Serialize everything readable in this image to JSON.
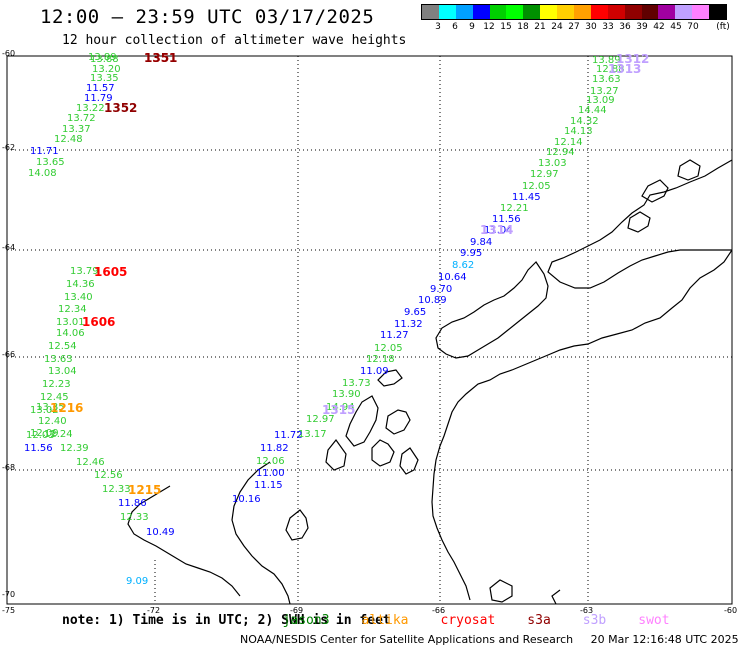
{
  "header": {
    "title": "12:00 – 23:59 UTC 03/17/2025",
    "subtitle": "12 hour collection of altimeter wave heights"
  },
  "legend": {
    "unit": "(ft)",
    "colors": [
      "#808080",
      "#00ffff",
      "#00a0ff",
      "#0000ff",
      "#00d000",
      "#00ff00",
      "#009000",
      "#ffff00",
      "#ffd000",
      "#ffa000",
      "#ff0000",
      "#d00000",
      "#900000",
      "#600000",
      "#a000a0",
      "#c0a0ff",
      "#ff80ff",
      "#000000"
    ],
    "labels": [
      "3",
      "6",
      "9",
      "12",
      "15",
      "18",
      "21",
      "24",
      "27",
      "30",
      "33",
      "36",
      "39",
      "42",
      "45",
      "70"
    ]
  },
  "axes": {
    "lat_labels": [
      "-60",
      "-62",
      "-64",
      "-66",
      "-68",
      "-70"
    ],
    "lon_labels": [
      "-75",
      "-72",
      "-69",
      "-66",
      "-63",
      "-60"
    ]
  },
  "passes": [
    {
      "id": "1351",
      "color": "#ff0000"
    },
    {
      "id": "1351",
      "color": "#900000"
    },
    {
      "id": "1352",
      "color": "#900000"
    },
    {
      "id": "1605",
      "color": "#ff0000"
    },
    {
      "id": "1606",
      "color": "#ff0000"
    },
    {
      "id": "1216",
      "color": "#ff9900"
    },
    {
      "id": "1215",
      "color": "#ff9900"
    },
    {
      "id": "1312",
      "color": "#c0a0ff"
    },
    {
      "id": "1313",
      "color": "#c0a0ff"
    },
    {
      "id": "1314",
      "color": "#c0a0ff"
    },
    {
      "id": "1315",
      "color": "#c0a0ff"
    }
  ],
  "swh_values": [
    {
      "v": "13.89",
      "c": "#33cc33"
    },
    {
      "v": "13.88",
      "c": "#33cc33"
    },
    {
      "v": "13.20",
      "c": "#33cc33"
    },
    {
      "v": "13.35",
      "c": "#33cc33"
    },
    {
      "v": "11.57",
      "c": "#0000ff"
    },
    {
      "v": "11.79",
      "c": "#0000ff"
    },
    {
      "v": "13.22",
      "c": "#33cc33"
    },
    {
      "v": "13.72",
      "c": "#33cc33"
    },
    {
      "v": "13.37",
      "c": "#33cc33"
    },
    {
      "v": "12.48",
      "c": "#33cc33"
    },
    {
      "v": "11.71",
      "c": "#0000ff"
    },
    {
      "v": "13.65",
      "c": "#33cc33"
    },
    {
      "v": "14.08",
      "c": "#33cc33"
    },
    {
      "v": "13.79",
      "c": "#33cc33"
    },
    {
      "v": "14.36",
      "c": "#33cc33"
    },
    {
      "v": "13.40",
      "c": "#33cc33"
    },
    {
      "v": "12.34",
      "c": "#33cc33"
    },
    {
      "v": "13.01",
      "c": "#33cc33"
    },
    {
      "v": "14.06",
      "c": "#33cc33"
    },
    {
      "v": "12.54",
      "c": "#33cc33"
    },
    {
      "v": "13.63",
      "c": "#33cc33"
    },
    {
      "v": "13.04",
      "c": "#33cc33"
    },
    {
      "v": "12.23",
      "c": "#33cc33"
    },
    {
      "v": "12.45",
      "c": "#33cc33"
    },
    {
      "v": "13.35",
      "c": "#33cc33"
    },
    {
      "v": "13.02",
      "c": "#33cc33"
    },
    {
      "v": "12.40",
      "c": "#33cc33"
    },
    {
      "v": "12.09",
      "c": "#33cc33"
    },
    {
      "v": "12.03",
      "c": "#33cc33"
    },
    {
      "v": "12.24",
      "c": "#33cc33"
    },
    {
      "v": "11.56",
      "c": "#0000ff"
    },
    {
      "v": "12.39",
      "c": "#33cc33"
    },
    {
      "v": "12.46",
      "c": "#33cc33"
    },
    {
      "v": "12.56",
      "c": "#33cc33"
    },
    {
      "v": "12.33",
      "c": "#33cc33"
    },
    {
      "v": "11.86",
      "c": "#0000ff"
    },
    {
      "v": "12.33",
      "c": "#33cc33"
    },
    {
      "v": "10.49",
      "c": "#0000ff"
    },
    {
      "v": "9.09",
      "c": "#00b0ff"
    },
    {
      "v": "13.89",
      "c": "#33cc33"
    },
    {
      "v": "12.88",
      "c": "#33cc33"
    },
    {
      "v": "13.63",
      "c": "#33cc33"
    },
    {
      "v": "13.27",
      "c": "#33cc33"
    },
    {
      "v": "13.09",
      "c": "#33cc33"
    },
    {
      "v": "14.44",
      "c": "#33cc33"
    },
    {
      "v": "14.32",
      "c": "#33cc33"
    },
    {
      "v": "14.13",
      "c": "#33cc33"
    },
    {
      "v": "12.14",
      "c": "#33cc33"
    },
    {
      "v": "12.94",
      "c": "#33cc33"
    },
    {
      "v": "13.03",
      "c": "#33cc33"
    },
    {
      "v": "12.97",
      "c": "#33cc33"
    },
    {
      "v": "12.05",
      "c": "#33cc33"
    },
    {
      "v": "11.45",
      "c": "#0000ff"
    },
    {
      "v": "12.21",
      "c": "#33cc33"
    },
    {
      "v": "11.56",
      "c": "#0000ff"
    },
    {
      "v": "11.04",
      "c": "#0000ff"
    },
    {
      "v": "9.84",
      "c": "#0000ff"
    },
    {
      "v": "9.95",
      "c": "#0000ff"
    },
    {
      "v": "8.62",
      "c": "#00b0ff"
    },
    {
      "v": "10.64",
      "c": "#0000ff"
    },
    {
      "v": "9.70",
      "c": "#0000ff"
    },
    {
      "v": "10.89",
      "c": "#0000ff"
    },
    {
      "v": "9.65",
      "c": "#0000ff"
    },
    {
      "v": "11.32",
      "c": "#0000ff"
    },
    {
      "v": "11.27",
      "c": "#0000ff"
    },
    {
      "v": "12.05",
      "c": "#33cc33"
    },
    {
      "v": "12.18",
      "c": "#33cc33"
    },
    {
      "v": "11.09",
      "c": "#0000ff"
    },
    {
      "v": "13.73",
      "c": "#33cc33"
    },
    {
      "v": "13.90",
      "c": "#33cc33"
    },
    {
      "v": "14.94",
      "c": "#33cc33"
    },
    {
      "v": "12.97",
      "c": "#33cc33"
    },
    {
      "v": "13.17",
      "c": "#33cc33"
    },
    {
      "v": "11.72",
      "c": "#0000ff"
    },
    {
      "v": "11.82",
      "c": "#0000ff"
    },
    {
      "v": "12.06",
      "c": "#33cc33"
    },
    {
      "v": "11.00",
      "c": "#0000ff"
    },
    {
      "v": "11.15",
      "c": "#0000ff"
    },
    {
      "v": "10.16",
      "c": "#0000ff"
    }
  ],
  "note": {
    "text": "note: 1) Time is in UTC; 2) SWH is in feet",
    "satellites": [
      {
        "name": "jason3",
        "color": "#008000"
      },
      {
        "name": "altika",
        "color": "#ff9900"
      },
      {
        "name": "cryosat",
        "color": "#ff0000"
      },
      {
        "name": "s3a",
        "color": "#900000"
      },
      {
        "name": "s3b",
        "color": "#c0a0ff"
      },
      {
        "name": "swot",
        "color": "#ff80ff"
      }
    ]
  },
  "footer": {
    "center": "NOAA/NESDIS Center for Satellite Applications and Research",
    "timestamp": "20 Mar 12:16:48 UTC 2025"
  }
}
